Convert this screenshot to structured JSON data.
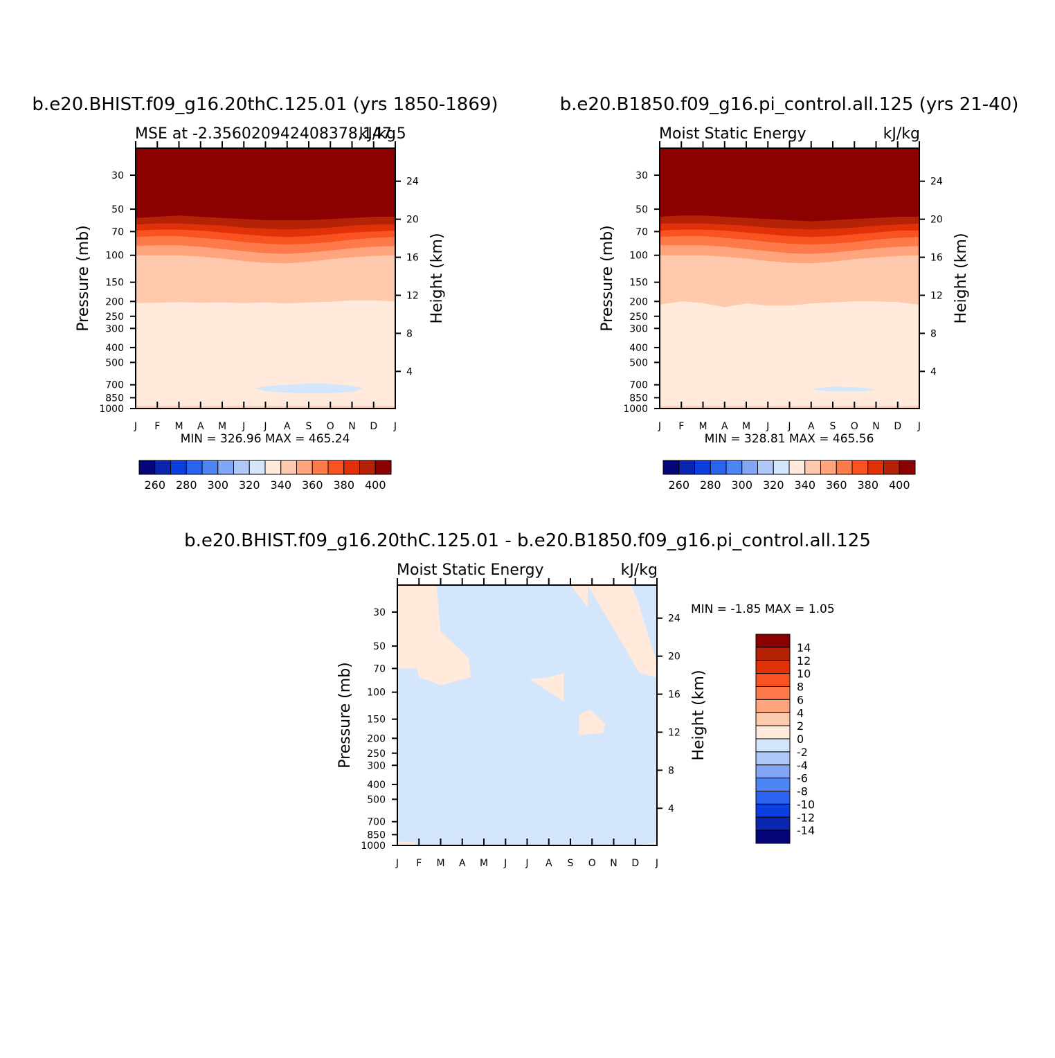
{
  "colors": {
    "scale": [
      "#05057a",
      "#0a25b0",
      "#0d3fe0",
      "#2a63f0",
      "#4d85f5",
      "#82a6f6",
      "#b0c8f8",
      "#d4e6fb",
      "#ffeadb",
      "#ffc9ad",
      "#ffa47c",
      "#ff7a4a",
      "#f85320",
      "#e03108",
      "#b52205",
      "#8b0000"
    ]
  },
  "panels": [
    {
      "title": "b.e20.BHIST.f09_g16.20thC.125.01 (yrs 1850-1869)",
      "subtitle_left": "MSE at -2.356020942408378,147.5",
      "subtitle_right": "kJ/kg",
      "ylabel_left": "Pressure (mb)",
      "ylabel_right": "Height (km)",
      "minmax": "MIN = 326.96  MAX = 465.24",
      "colorbar_labels": [
        "260",
        "280",
        "300",
        "320",
        "340",
        "360",
        "380",
        "400"
      ]
    },
    {
      "title": "b.e20.B1850.f09_g16.pi_control.all.125 (yrs 21-40)",
      "subtitle_left": "Moist Static Energy",
      "subtitle_right": "kJ/kg",
      "ylabel_left": "Pressure (mb)",
      "ylabel_right": "Height (km)",
      "minmax": "MIN = 328.81  MAX = 465.56",
      "colorbar_labels": [
        "260",
        "280",
        "300",
        "320",
        "340",
        "360",
        "380",
        "400"
      ]
    },
    {
      "title": "b.e20.BHIST.f09_g16.20thC.125.01 - b.e20.B1850.f09_g16.pi_control.all.125",
      "subtitle_left": "Moist Static Energy",
      "subtitle_right": "kJ/kg",
      "ylabel_left": "Pressure (mb)",
      "ylabel_right": "Height (km)",
      "minmax": "MIN =   -1.85 MAX =    1.05",
      "colorbar_labels": [
        "14",
        "12",
        "10",
        "8",
        "6",
        "4",
        "2",
        "0",
        "-2",
        "-4",
        "-6",
        "-8",
        "-10",
        "-12",
        "-14"
      ]
    }
  ],
  "chart_data": [
    {
      "type": "heatmap",
      "title": "b.e20.BHIST.f09_g16.20thC.125.01 (yrs 1850-1869)",
      "x_tick_labels": [
        "J",
        "F",
        "M",
        "A",
        "M",
        "J",
        "J",
        "A",
        "S",
        "O",
        "N",
        "D",
        "J"
      ],
      "y_pressure_ticks": [
        30,
        50,
        70,
        100,
        150,
        200,
        250,
        300,
        400,
        500,
        700,
        850,
        1000
      ],
      "y_height_ticks": [
        4,
        8,
        12,
        16,
        20,
        24
      ],
      "ylabel": "Pressure (mb)",
      "ylabel_right": "Height (km)",
      "colorbar_levels": [
        260,
        270,
        280,
        290,
        300,
        310,
        320,
        330,
        340,
        350,
        360,
        370,
        380,
        390,
        400
      ],
      "min": 326.96,
      "max": 465.24,
      "months": [
        0,
        1,
        2,
        3,
        4,
        5,
        6,
        7,
        8,
        9,
        10,
        11,
        12
      ],
      "level_boundaries_mb": {
        "400": [
          57,
          56,
          55,
          56,
          57,
          58,
          59,
          59,
          59,
          58,
          57,
          56,
          56
        ],
        "390": [
          63,
          62,
          62,
          63,
          64,
          66,
          67,
          68,
          67,
          66,
          64,
          63,
          63
        ],
        "380": [
          69,
          68,
          68,
          69,
          71,
          73,
          75,
          76,
          75,
          73,
          71,
          70,
          69
        ],
        "370": [
          76,
          75,
          75,
          77,
          79,
          82,
          84,
          85,
          84,
          82,
          79,
          77,
          76
        ],
        "360": [
          87,
          86,
          86,
          88,
          91,
          94,
          97,
          98,
          96,
          93,
          90,
          88,
          87
        ],
        "350": [
          100,
          100,
          100,
          102,
          105,
          109,
          112,
          113,
          110,
          106,
          103,
          101,
          100
        ],
        "340": [
          205,
          204,
          202,
          204,
          203,
          205,
          203,
          206,
          203,
          201,
          197,
          197,
          200
        ]
      },
      "low_region_330": {
        "months": [
          5.5,
          6,
          7,
          8,
          9,
          10,
          10.5
        ],
        "p_top": [
          735,
          715,
          700,
          685,
          690,
          710,
          735
        ],
        "p_bottom": [
          735,
          770,
          790,
          795,
          793,
          780,
          735
        ]
      }
    },
    {
      "type": "heatmap",
      "title": "b.e20.B1850.f09_g16.pi_control.all.125 (yrs 21-40)",
      "x_tick_labels": [
        "J",
        "F",
        "M",
        "A",
        "M",
        "J",
        "J",
        "A",
        "S",
        "O",
        "N",
        "D",
        "J"
      ],
      "y_pressure_ticks": [
        30,
        50,
        70,
        100,
        150,
        200,
        250,
        300,
        400,
        500,
        700,
        850,
        1000
      ],
      "y_height_ticks": [
        4,
        8,
        12,
        16,
        20,
        24
      ],
      "ylabel": "Pressure (mb)",
      "ylabel_right": "Height (km)",
      "colorbar_levels": [
        260,
        270,
        280,
        290,
        300,
        310,
        320,
        330,
        340,
        350,
        360,
        370,
        380,
        390,
        400
      ],
      "min": 328.81,
      "max": 465.56,
      "months": [
        0,
        1,
        2,
        3,
        4,
        5,
        6,
        7,
        8,
        9,
        10,
        11,
        12
      ],
      "level_boundaries_mb": {
        "400": [
          56,
          55,
          55,
          56,
          57,
          58,
          59,
          60,
          59,
          58,
          57,
          56,
          56
        ],
        "390": [
          62,
          62,
          62,
          63,
          64,
          66,
          67,
          68,
          67,
          66,
          64,
          63,
          62
        ],
        "380": [
          69,
          68,
          68,
          69,
          71,
          73,
          75,
          76,
          75,
          73,
          71,
          69,
          69
        ],
        "370": [
          76,
          75,
          75,
          77,
          79,
          82,
          84,
          85,
          84,
          82,
          79,
          77,
          76
        ],
        "360": [
          86,
          86,
          86,
          88,
          91,
          94,
          97,
          98,
          96,
          93,
          90,
          88,
          87
        ],
        "350": [
          100,
          100,
          100,
          102,
          105,
          109,
          112,
          113,
          110,
          106,
          103,
          101,
          100
        ],
        "340": [
          210,
          200,
          205,
          218,
          206,
          213,
          213,
          206,
          203,
          200,
          200,
          202,
          210
        ]
      },
      "low_region_330": {
        "months": [
          7,
          7.5,
          8,
          9,
          9.5,
          10
        ],
        "p_top": [
          745,
          730,
          720,
          725,
          735,
          755
        ],
        "p_bottom": [
          745,
          765,
          775,
          775,
          770,
          755
        ]
      }
    },
    {
      "type": "heatmap",
      "title": "b.e20.BHIST.f09_g16.20thC.125.01 - b.e20.B1850.f09_g16.pi_control.all.125",
      "x_tick_labels": [
        "J",
        "F",
        "M",
        "A",
        "M",
        "J",
        "J",
        "A",
        "S",
        "O",
        "N",
        "D",
        "J"
      ],
      "y_pressure_ticks": [
        30,
        50,
        70,
        100,
        150,
        200,
        250,
        300,
        400,
        500,
        700,
        850,
        1000
      ],
      "y_height_ticks": [
        4,
        8,
        12,
        16,
        20,
        24
      ],
      "ylabel": "Pressure (mb)",
      "ylabel_right": "Height (km)",
      "colorbar_levels": [
        -14,
        -12,
        -10,
        -8,
        -6,
        -4,
        -2,
        0,
        2,
        4,
        6,
        8,
        10,
        12,
        14
      ],
      "min": -1.85,
      "max": 1.05,
      "background_range": "-2 to 0",
      "positive_regions_0_to_2": [
        {
          "months": [
            0,
            1.8,
            2,
            3.3,
            3.4,
            2,
            1,
            0.9,
            0
          ],
          "p": [
            20,
            20,
            40,
            60,
            80,
            90,
            80,
            70,
            70
          ]
        },
        {
          "months": [
            7.0,
            7.7,
            7.7,
            6.1
          ],
          "p": [
            80,
            75,
            115,
            82
          ]
        },
        {
          "months": [
            8.0,
            8.8,
            8.8
          ],
          "p": [
            20,
            20,
            28
          ]
        },
        {
          "months": [
            8.8,
            10.8,
            11.1,
            12,
            12,
            11.2
          ],
          "p": [
            20,
            20,
            25,
            65,
            80,
            75
          ]
        },
        {
          "months": [
            8.4,
            8.9,
            9.6,
            9.5,
            8.4
          ],
          "p": [
            140,
            130,
            160,
            185,
            190
          ]
        },
        {
          "months": [
            0,
            0.8,
            0.9,
            0
          ],
          "p": [
            940,
            955,
            1000,
            1000
          ]
        },
        {
          "months": [
            10.8,
            11.8,
            12,
            12
          ],
          "p": [
            1000,
            965,
            920,
            1000
          ]
        }
      ]
    }
  ]
}
